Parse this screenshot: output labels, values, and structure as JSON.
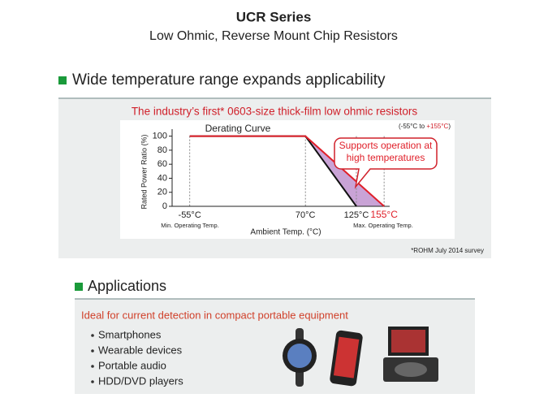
{
  "header": {
    "title": "UCR Series",
    "subtitle": "Low Ohmic, Reverse Mount Chip Resistors"
  },
  "section1": {
    "heading": "Wide temperature range expands applicability",
    "panel_title": "The industry’s first* 0603-size thick-film low ohmic resistors",
    "range_note": [
      "(-55°C to ",
      "+155°C",
      ")"
    ],
    "footnote": "*ROHM July 2014 survey"
  },
  "chart_data": {
    "type": "line",
    "annotation": "Derating Curve",
    "callout": [
      "Supports operation at",
      "high temperatures"
    ],
    "ylabel": "Rated Power Ratio (%)",
    "xlabel": "Ambient Temp. (°C)",
    "min_note": "Min. Operating Temp.",
    "max_note": "Max. Operating Temp.",
    "series": [
      {
        "color": "#111111",
        "x": [
          -55,
          70,
          125
        ],
        "values": [
          100,
          100,
          0
        ]
      },
      {
        "color": "#e0202a",
        "x": [
          -55,
          70,
          155
        ],
        "values": [
          100,
          100,
          0
        ]
      }
    ],
    "fill_color": "#c9a3d6",
    "xlim": [
      -74,
      161
    ],
    "xticks": [
      {
        "value": -55,
        "label": "-55°C"
      },
      {
        "value": 70,
        "label": "70°C"
      },
      {
        "value": 125,
        "label": "125°C"
      },
      {
        "value": 155,
        "label": "155°C"
      }
    ],
    "ylim": [
      0,
      110
    ],
    "yticks": [
      0,
      20,
      40,
      60,
      80,
      100
    ]
  },
  "section2": {
    "heading": "Applications",
    "box_title": "Ideal for current detection in compact portable equipment",
    "items": [
      "Smartphones",
      "Wearable devices",
      "Portable audio",
      "HDD/DVD players"
    ]
  }
}
